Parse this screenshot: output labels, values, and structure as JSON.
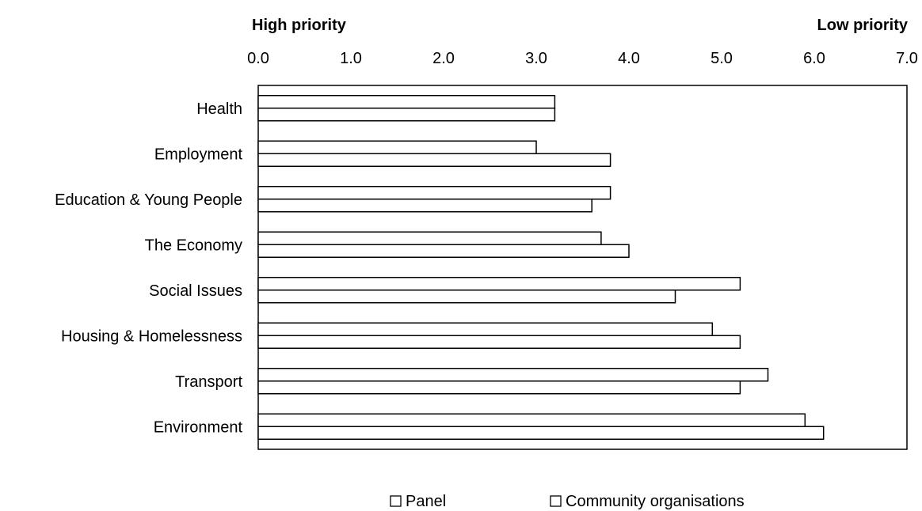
{
  "chart_data": {
    "type": "bar",
    "orientation": "horizontal",
    "priority_labels": {
      "left": "High priority",
      "right": "Low priority"
    },
    "xlim": [
      0,
      7
    ],
    "x_ticks": [
      "0.0",
      "1.0",
      "2.0",
      "3.0",
      "4.0",
      "5.0",
      "6.0",
      "7.0"
    ],
    "x_axis_position": "top",
    "categories": [
      "Health",
      "Employment",
      "Education & Young People",
      "The Economy",
      "Social Issues",
      "Housing & Homelessness",
      "Transport",
      "Environment"
    ],
    "series": [
      {
        "name": "Panel",
        "values": [
          3.2,
          3.0,
          3.8,
          3.7,
          5.2,
          4.9,
          5.5,
          5.9
        ]
      },
      {
        "name": "Community organisations",
        "values": [
          3.2,
          3.8,
          3.6,
          4.0,
          4.5,
          5.2,
          5.2,
          6.1
        ]
      }
    ],
    "bar_fill": "#ffffff",
    "bar_stroke": "#000000",
    "legend_position": "bottom",
    "grid": false
  }
}
